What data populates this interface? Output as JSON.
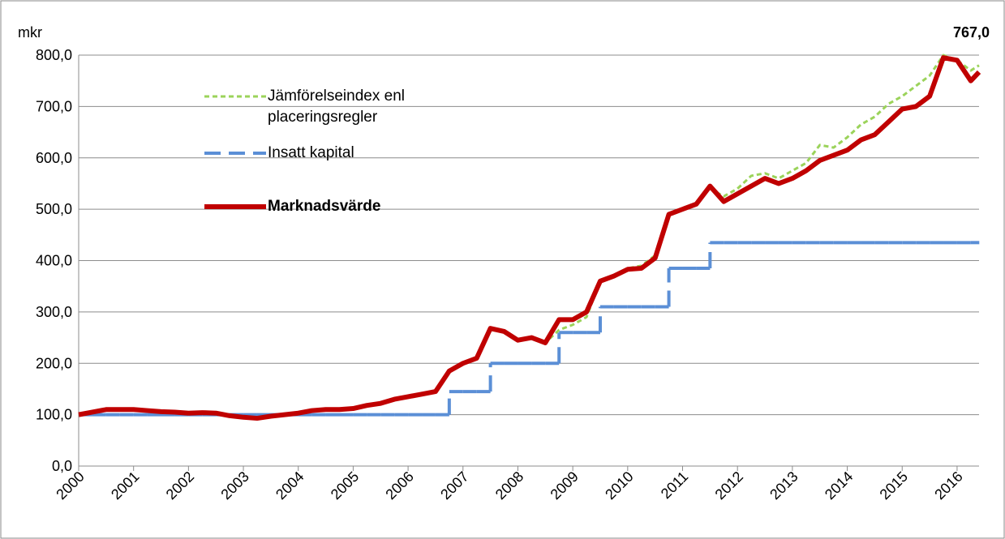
{
  "chart_data": {
    "type": "line",
    "y_label": "mkr",
    "annotation": "767,0",
    "x": [
      2000,
      2000.25,
      2000.5,
      2000.75,
      2001,
      2001.25,
      2001.5,
      2001.75,
      2002,
      2002.25,
      2002.5,
      2002.75,
      2003,
      2003.25,
      2003.5,
      2003.75,
      2004,
      2004.25,
      2004.5,
      2004.75,
      2005,
      2005.25,
      2005.5,
      2005.75,
      2006,
      2006.25,
      2006.5,
      2006.75,
      2007,
      2007.25,
      2007.5,
      2007.75,
      2008,
      2008.25,
      2008.5,
      2008.75,
      2009,
      2009.25,
      2009.5,
      2009.75,
      2010,
      2010.25,
      2010.5,
      2010.75,
      2011,
      2011.25,
      2011.5,
      2011.75,
      2012,
      2012.25,
      2012.5,
      2012.75,
      2013,
      2013.25,
      2013.5,
      2013.75,
      2014,
      2014.25,
      2014.5,
      2014.75,
      2015,
      2015.25,
      2015.5,
      2015.75,
      2016,
      2016.25,
      2016.4
    ],
    "series": [
      {
        "name": "Jämförelseindex enl placeringsregler",
        "color": "#9bd35a",
        "style": "dotted",
        "width": 3,
        "values": [
          100,
          105,
          110,
          110,
          110,
          108,
          106,
          105,
          103,
          104,
          103,
          98,
          95,
          93,
          97,
          100,
          103,
          108,
          110,
          110,
          112,
          118,
          122,
          130,
          135,
          140,
          145,
          185,
          200,
          212,
          265,
          262,
          245,
          250,
          240,
          265,
          275,
          290,
          360,
          370,
          385,
          390,
          410,
          490,
          500,
          512,
          540,
          525,
          540,
          565,
          570,
          560,
          575,
          590,
          625,
          620,
          640,
          665,
          680,
          705,
          720,
          740,
          760,
          800,
          790,
          770,
          780
        ]
      },
      {
        "name": "Insatt kapital",
        "color": "#5b8fd6",
        "style": "dashed",
        "step": true,
        "width": 4,
        "values": [
          100,
          100,
          100,
          100,
          100,
          100,
          100,
          100,
          100,
          100,
          100,
          100,
          100,
          100,
          100,
          100,
          100,
          100,
          100,
          100,
          100,
          100,
          100,
          100,
          100,
          100,
          100,
          145,
          145,
          145,
          200,
          200,
          200,
          200,
          200,
          260,
          260,
          260,
          310,
          310,
          310,
          310,
          310,
          385,
          385,
          385,
          435,
          435,
          435,
          435,
          435,
          435,
          435,
          435,
          435,
          435,
          435,
          435,
          435,
          435,
          435,
          435,
          435,
          435,
          435,
          435,
          435
        ]
      },
      {
        "name": "Marknadsvärde",
        "color": "#c00000",
        "style": "solid",
        "width": 6,
        "bold": true,
        "values": [
          100,
          105,
          110,
          110,
          110,
          108,
          106,
          105,
          103,
          104,
          103,
          98,
          95,
          93,
          97,
          100,
          103,
          108,
          110,
          110,
          112,
          118,
          122,
          130,
          135,
          140,
          145,
          185,
          200,
          210,
          268,
          262,
          245,
          250,
          240,
          285,
          285,
          300,
          360,
          370,
          383,
          385,
          405,
          490,
          500,
          510,
          545,
          515,
          530,
          545,
          560,
          550,
          560,
          575,
          595,
          605,
          615,
          635,
          645,
          670,
          695,
          700,
          720,
          795,
          790,
          750,
          767
        ]
      }
    ],
    "xlim": [
      2000,
      2016.4
    ],
    "xticks": [
      2000,
      2001,
      2002,
      2003,
      2004,
      2005,
      2006,
      2007,
      2008,
      2009,
      2010,
      2011,
      2012,
      2013,
      2014,
      2015,
      2016
    ],
    "ylim": [
      0,
      800
    ],
    "yticks": [
      {
        "value": 0,
        "label": "0,0"
      },
      {
        "value": 100,
        "label": "100,0"
      },
      {
        "value": 200,
        "label": "200,0"
      },
      {
        "value": 300,
        "label": "300,0"
      },
      {
        "value": 400,
        "label": "400,0"
      },
      {
        "value": 500,
        "label": "500,0"
      },
      {
        "value": 600,
        "label": "600,0"
      },
      {
        "value": 700,
        "label": "700,0"
      },
      {
        "value": 800,
        "label": "800,0"
      }
    ],
    "grid": true,
    "legend": "upper left"
  }
}
